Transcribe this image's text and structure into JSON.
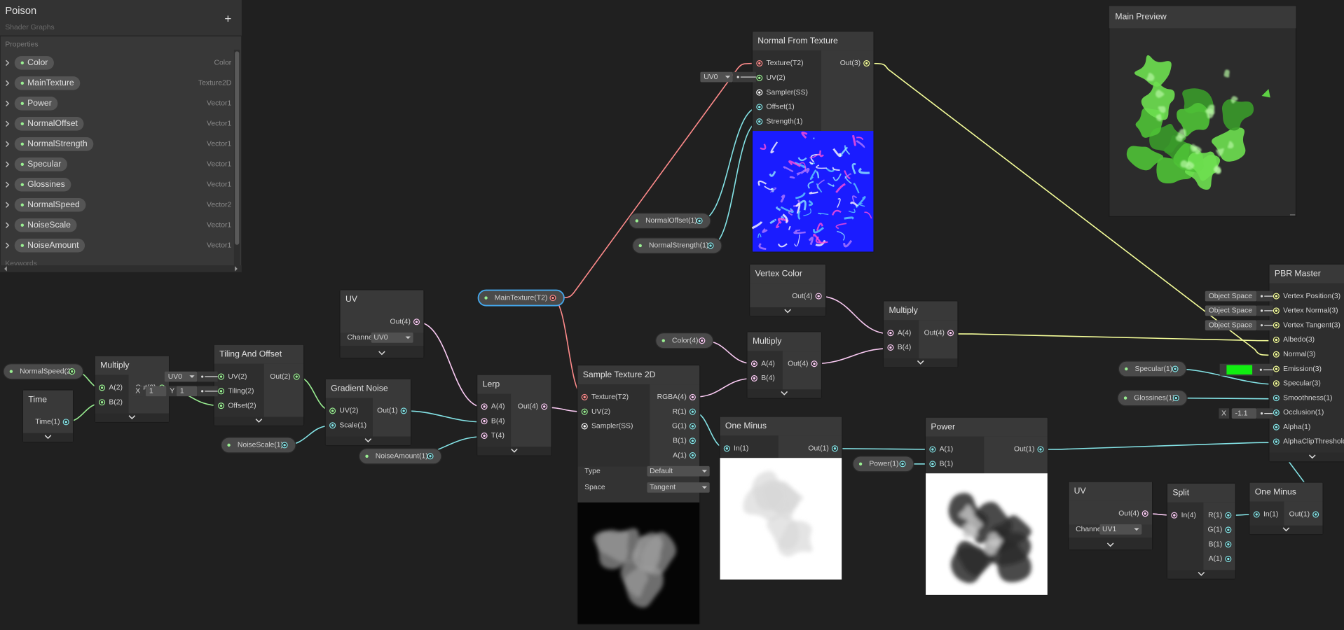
{
  "blackboard": {
    "title": "Poison",
    "subtitle": "Shader Graphs",
    "add_button": "+",
    "section": "Properties",
    "properties": [
      {
        "name": "Color",
        "type": "Color"
      },
      {
        "name": "MainTexture",
        "type": "Texture2D"
      },
      {
        "name": "Power",
        "type": "Vector1"
      },
      {
        "name": "NormalOffset",
        "type": "Vector1"
      },
      {
        "name": "NormalStrength",
        "type": "Vector1"
      },
      {
        "name": "Specular",
        "type": "Vector1"
      },
      {
        "name": "Glossines",
        "type": "Vector1"
      },
      {
        "name": "NormalSpeed",
        "type": "Vector2"
      },
      {
        "name": "NoiseScale",
        "type": "Vector1"
      },
      {
        "name": "NoiseAmount",
        "type": "Vector1"
      }
    ],
    "footer": "Keywords"
  },
  "main_preview": {
    "title": "Main Preview"
  },
  "nodes": [
    {
      "title": "Normal From Texture",
      "inputs": [
        "Texture(T2)",
        "UV(2)",
        "Sampler(SS)",
        "Offset(1)",
        "Strength(1)"
      ],
      "outputs": [
        "Out(3)"
      ]
    },
    {
      "title": "Vertex Color",
      "inputs": [],
      "outputs": [
        "Out(4)"
      ]
    },
    {
      "title": "Multiply",
      "inputs": [
        "A(4)",
        "B(4)"
      ],
      "outputs": [
        "Out(4)"
      ]
    },
    {
      "title": "Multiply",
      "inputs": [
        "A(4)",
        "B(4)"
      ],
      "outputs": [
        "Out(4)"
      ]
    },
    {
      "title": "Sample Texture 2D",
      "inputs": [
        "Texture(T2)",
        "UV(2)",
        "Sampler(SS)"
      ],
      "outputs": [
        "RGBA(4)",
        "R(1)",
        "G(1)",
        "B(1)",
        "A(1)"
      ],
      "controls": [
        {
          "label": "Type",
          "value": "Default"
        },
        {
          "label": "Space",
          "value": "Tangent"
        }
      ]
    },
    {
      "title": "One Minus",
      "inputs": [
        "In(1)"
      ],
      "outputs": [
        "Out(1)"
      ]
    },
    {
      "title": "Power",
      "inputs": [
        "A(1)",
        "B(1)"
      ],
      "outputs": [
        "Out(1)"
      ]
    },
    {
      "title": "UV",
      "inputs": [],
      "outputs": [
        "Out(4)"
      ],
      "controls": [
        {
          "label": "Channel",
          "value": "UV1"
        }
      ]
    },
    {
      "title": "Split",
      "inputs": [
        "In(4)"
      ],
      "outputs": [
        "R(1)",
        "G(1)",
        "B(1)",
        "A(1)"
      ]
    },
    {
      "title": "One Minus",
      "inputs": [
        "In(1)"
      ],
      "outputs": [
        "Out(1)"
      ]
    },
    {
      "title": "Lerp",
      "inputs": [
        "A(4)",
        "B(4)",
        "T(4)"
      ],
      "outputs": [
        "Out(4)"
      ]
    },
    {
      "title": "UV",
      "inputs": [],
      "outputs": [
        "Out(4)"
      ],
      "controls": [
        {
          "label": "Channel",
          "value": "UV0"
        }
      ]
    },
    {
      "title": "Gradient Noise",
      "inputs": [
        "UV(2)",
        "Scale(1)"
      ],
      "outputs": [
        "Out(1)"
      ]
    },
    {
      "title": "Tiling And Offset",
      "inputs": [
        "UV(2)",
        "Tiling(2)",
        "Offset(2)"
      ],
      "outputs": [
        "Out(2)"
      ]
    },
    {
      "title": "Multiply",
      "inputs": [
        "A(2)",
        "B(2)"
      ],
      "outputs": [
        "Out(2)"
      ]
    },
    {
      "title": "Time",
      "inputs": [],
      "outputs": [
        "Time(1)"
      ]
    },
    {
      "title": "PBR Master",
      "inputs": [
        "Vertex Position(3)",
        "Vertex Normal(3)",
        "Vertex Tangent(3)",
        "Albedo(3)",
        "Normal(3)",
        "Emission(3)",
        "Specular(3)",
        "Smoothness(1)",
        "Occlusion(1)",
        "Alpha(1)",
        "AlphaClipThreshold"
      ],
      "outputs": []
    }
  ],
  "property_nodes": [
    "NormalSpeed(2)",
    "NoiseScale(1)",
    "NoiseAmount(1)",
    "MainTexture(T2)",
    "NormalOffset(1)",
    "NormalStrength(1)",
    "Color(4)",
    "Power(1)",
    "Specular(1)",
    "Glossines(1)"
  ],
  "inline_fields": [
    [
      "UV0"
    ],
    [
      "UV0"
    ],
    [
      "X",
      1,
      "Y",
      1
    ],
    [
      "Object Space"
    ],
    [
      "Object Space"
    ],
    [
      "Object Space"
    ],
    [
      "X",
      -1.1
    ]
  ],
  "emission_color": "#11ee11"
}
